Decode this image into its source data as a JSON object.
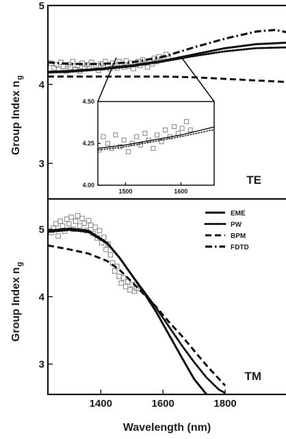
{
  "chart_data": [
    {
      "type": "line",
      "panel": "top",
      "mode_label": "TE",
      "ylabel": "Group Index n",
      "ylabel_sub": "g",
      "xlim": [
        1230,
        2000
      ],
      "ylim": [
        2.55,
        5.0
      ],
      "yticks": [
        "3",
        "4",
        "5"
      ],
      "series": [
        {
          "name": "EME",
          "style": "solid",
          "x": [
            1230,
            1300,
            1400,
            1500,
            1600,
            1700,
            1800,
            1900,
            2000
          ],
          "y": [
            4.16,
            4.17,
            4.2,
            4.24,
            4.3,
            4.38,
            4.46,
            4.51,
            4.53
          ]
        },
        {
          "name": "PW",
          "style": "dotted",
          "x": [
            1230,
            1300,
            1400,
            1500,
            1600,
            1700,
            1800,
            1900,
            2000
          ],
          "y": [
            4.15,
            4.16,
            4.19,
            4.23,
            4.29,
            4.36,
            4.42,
            4.46,
            4.47
          ]
        },
        {
          "name": "BPM",
          "style": "dashed",
          "x": [
            1230,
            1300,
            1400,
            1500,
            1600,
            1700,
            1800,
            1900,
            2000
          ],
          "y": [
            4.1,
            4.1,
            4.1,
            4.1,
            4.1,
            4.09,
            4.07,
            4.05,
            4.03
          ]
        },
        {
          "name": "FDTD",
          "style": "dashdot",
          "x": [
            1230,
            1300,
            1400,
            1500,
            1600,
            1700,
            1800,
            1900,
            1960,
            2000
          ],
          "y": [
            4.28,
            4.26,
            4.26,
            4.28,
            4.35,
            4.47,
            4.58,
            4.67,
            4.69,
            4.66
          ]
        }
      ],
      "measured": {
        "x": [
          1240,
          1250,
          1258,
          1265,
          1272,
          1280,
          1288,
          1295,
          1302,
          1310,
          1318,
          1325,
          1333,
          1340,
          1348,
          1355,
          1363,
          1370,
          1378,
          1385,
          1393,
          1400,
          1408,
          1415,
          1423,
          1430,
          1438,
          1445,
          1452,
          1460,
          1468,
          1475,
          1482,
          1490,
          1497,
          1505,
          1512,
          1520,
          1527,
          1535,
          1542,
          1550,
          1557,
          1565,
          1572,
          1580,
          1588,
          1595,
          1602,
          1610,
          1617
        ],
        "y": [
          4.27,
          4.21,
          4.25,
          4.19,
          4.28,
          4.23,
          4.17,
          4.25,
          4.22,
          4.29,
          4.19,
          4.24,
          4.17,
          4.27,
          4.21,
          4.25,
          4.2,
          4.28,
          4.22,
          4.24,
          4.18,
          4.26,
          4.21,
          4.29,
          4.23,
          4.2,
          4.27,
          4.24,
          4.21,
          4.29,
          4.25,
          4.22,
          4.3,
          4.23,
          4.27,
          4.2,
          4.25,
          4.29,
          4.24,
          4.31,
          4.27,
          4.22,
          4.3,
          4.26,
          4.33,
          4.29,
          4.35,
          4.31,
          4.34,
          4.38,
          4.33
        ]
      },
      "inset": {
        "xlim": [
          1450,
          1660
        ],
        "ylim": [
          4.0,
          4.5
        ],
        "xticks": [
          "1500",
          "1600"
        ],
        "yticks": [
          "4.00",
          "4.25",
          "4.50"
        ]
      }
    },
    {
      "type": "line",
      "panel": "bottom",
      "mode_label": "TM",
      "ylabel": "Group Index n",
      "ylabel_sub": "g",
      "xlabel": "Wavelength (nm)",
      "xlim": [
        1230,
        2000
      ],
      "ylim": [
        2.55,
        5.45
      ],
      "xticks": [
        "1400",
        "1600",
        "1800"
      ],
      "yticks": [
        "3",
        "4",
        "5"
      ],
      "legend": [
        "EME",
        "PW",
        "BPM",
        "FDTD"
      ],
      "series": [
        {
          "name": "EME",
          "style": "solid",
          "x": [
            1230,
            1300,
            1360,
            1420,
            1460,
            1500,
            1540,
            1580,
            1620,
            1660,
            1700,
            1740
          ],
          "y": [
            4.98,
            5.01,
            4.98,
            4.8,
            4.58,
            4.32,
            4.05,
            3.76,
            3.43,
            3.1,
            2.78,
            2.55
          ]
        },
        {
          "name": "PW",
          "style": "dotted",
          "x": [
            1230,
            1300,
            1360,
            1420,
            1460,
            1500,
            1540,
            1580,
            1620,
            1660,
            1700,
            1740,
            1780,
            1800
          ],
          "y": [
            4.96,
            4.99,
            4.96,
            4.79,
            4.58,
            4.32,
            4.07,
            3.82,
            3.55,
            3.28,
            3.03,
            2.8,
            2.62,
            2.57
          ]
        },
        {
          "name": "BPM",
          "style": "dashed",
          "x": [
            1230,
            1300,
            1360,
            1420,
            1460,
            1500,
            1540,
            1580,
            1620,
            1660,
            1700,
            1740,
            1780,
            1800
          ],
          "y": [
            4.76,
            4.7,
            4.64,
            4.53,
            4.4,
            4.22,
            4.03,
            3.84,
            3.62,
            3.42,
            3.2,
            2.98,
            2.78,
            2.68
          ]
        }
      ],
      "measured": {
        "x": [
          1240,
          1248,
          1256,
          1263,
          1270,
          1277,
          1284,
          1291,
          1298,
          1305,
          1312,
          1319,
          1326,
          1333,
          1340,
          1347,
          1354,
          1361,
          1368,
          1375,
          1382,
          1389,
          1396,
          1403,
          1410,
          1417,
          1424,
          1431,
          1438,
          1445,
          1452,
          1459,
          1466,
          1473,
          1480,
          1487,
          1494,
          1501,
          1508,
          1515
        ],
        "y": [
          4.95,
          5.02,
          5.08,
          4.9,
          5.12,
          5.05,
          4.97,
          5.15,
          5.08,
          5.18,
          5.0,
          5.12,
          5.2,
          5.05,
          5.16,
          5.09,
          4.98,
          5.13,
          5.06,
          4.94,
          5.03,
          4.87,
          4.98,
          4.8,
          4.88,
          4.7,
          4.78,
          4.62,
          4.5,
          4.38,
          4.45,
          4.3,
          4.2,
          4.28,
          4.15,
          4.22,
          4.1,
          4.18,
          4.08,
          4.12
        ]
      }
    }
  ]
}
